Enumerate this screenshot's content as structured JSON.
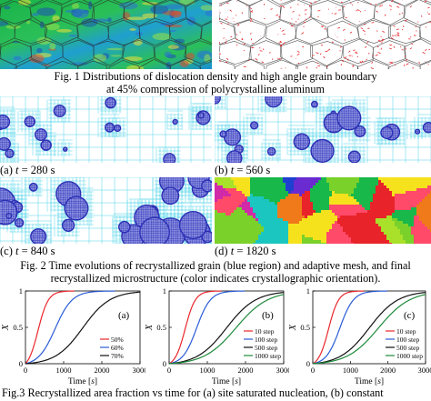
{
  "fig1": {
    "caption_line1": "Fig. 1 Distributions of dislocation density and high angle grain boundary",
    "caption_line2": "at 45% compression of polycrystalline aluminum"
  },
  "fig2": {
    "panels": [
      {
        "tag": "(a)",
        "var": "t",
        "rest": " = 280 s"
      },
      {
        "tag": "(b)",
        "var": "t",
        "rest": " = 560 s"
      },
      {
        "tag": "(c)",
        "var": "t",
        "rest": " = 840 s"
      },
      {
        "tag": "(d)",
        "var": "t",
        "rest": " = 1820 s"
      }
    ],
    "caption_line1": "Fig. 2 Time evolutions of recrystallized grain (blue region) and adaptive mesh, and final",
    "caption_line2": "recrystallized microstructure (color indicates crystallographic orientation)."
  },
  "fig3": {
    "caption": "Fig.3 Recrystallized area fraction vs time for (a) site saturated nucleation, (b) constant"
  },
  "colors": {
    "line_red": "#e8262b",
    "line_blue": "#2a5bd7",
    "line_black": "#111111",
    "line_green": "#1d8a3a",
    "mesh_cyan": "#4fd3e8",
    "grain_blue": "#2b2fb4"
  },
  "chart_data": [
    {
      "type": "line",
      "panel_label": "(a)",
      "xlabel": "Time [s]",
      "ylabel": "X",
      "xlim": [
        0,
        3000
      ],
      "ylim": [
        0,
        1
      ],
      "xticks": [
        "0",
        "1000",
        "2000",
        "3000"
      ],
      "yticks": [
        "0",
        "0.5",
        "1"
      ],
      "series": [
        {
          "name": "50%",
          "color": "#e8262b",
          "t50": 330,
          "k": 0.0075
        },
        {
          "name": "60%",
          "color": "#2a5bd7",
          "t50": 780,
          "k": 0.0045
        },
        {
          "name": "70%",
          "color": "#111111",
          "t50": 1500,
          "k": 0.0028
        }
      ]
    },
    {
      "type": "line",
      "panel_label": "(b)",
      "xlabel": "Time [s]",
      "ylabel": "X",
      "xlim": [
        0,
        3000
      ],
      "ylim": [
        0,
        1
      ],
      "xticks": [
        "0",
        "1000",
        "2000",
        "3000"
      ],
      "yticks": [
        "0",
        "0.5",
        "1"
      ],
      "series": [
        {
          "name": "10 step",
          "color": "#e8262b",
          "t50": 420,
          "k": 0.0075
        },
        {
          "name": "100 step",
          "color": "#2a5bd7",
          "t50": 720,
          "k": 0.0055
        },
        {
          "name": "500 step",
          "color": "#111111",
          "t50": 1500,
          "k": 0.0026
        },
        {
          "name": "1000 step",
          "color": "#1d8a3a",
          "t50": 1750,
          "k": 0.0024
        }
      ]
    },
    {
      "type": "line",
      "panel_label": "(c)",
      "xlabel": "Time [s]",
      "ylabel": "X",
      "xlim": [
        0,
        3000
      ],
      "ylim": [
        0,
        1
      ],
      "xticks": [
        "0",
        "1000",
        "2000",
        "3000"
      ],
      "yticks": [
        "0",
        "0.5",
        "1"
      ],
      "series": [
        {
          "name": "10 step",
          "color": "#e8262b",
          "t50": 420,
          "k": 0.0075
        },
        {
          "name": "100 step",
          "color": "#2a5bd7",
          "t50": 720,
          "k": 0.0055
        },
        {
          "name": "500 step",
          "color": "#111111",
          "t50": 1500,
          "k": 0.0026
        },
        {
          "name": "1000 step",
          "color": "#1d8a3a",
          "t50": 1750,
          "k": 0.0024
        }
      ]
    }
  ]
}
